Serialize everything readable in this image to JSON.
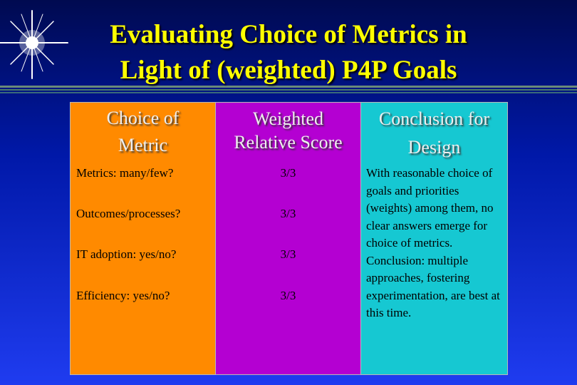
{
  "title": [
    "Evaluating Choice of Metrics in",
    "Light of (weighted) P4P Goals"
  ],
  "table": {
    "headers": [
      "Choice of Metric",
      "Weighted Relative Score",
      "Conclusion for Design"
    ],
    "rows": [
      [
        "Metrics: many/few?",
        "3/3"
      ],
      [
        "Outcomes/processes?",
        "3/3"
      ],
      [
        "IT adoption: yes/no?",
        "3/3"
      ],
      [
        "Efficiency: yes/no?",
        "3/3"
      ]
    ],
    "conclusion": [
      "With reasonable choice of goals and priorities (weights) among them, no clear answers emerge for choice of metrics.",
      "Conclusion: multiple approaches, fostering experimentation, are best at this time."
    ]
  }
}
